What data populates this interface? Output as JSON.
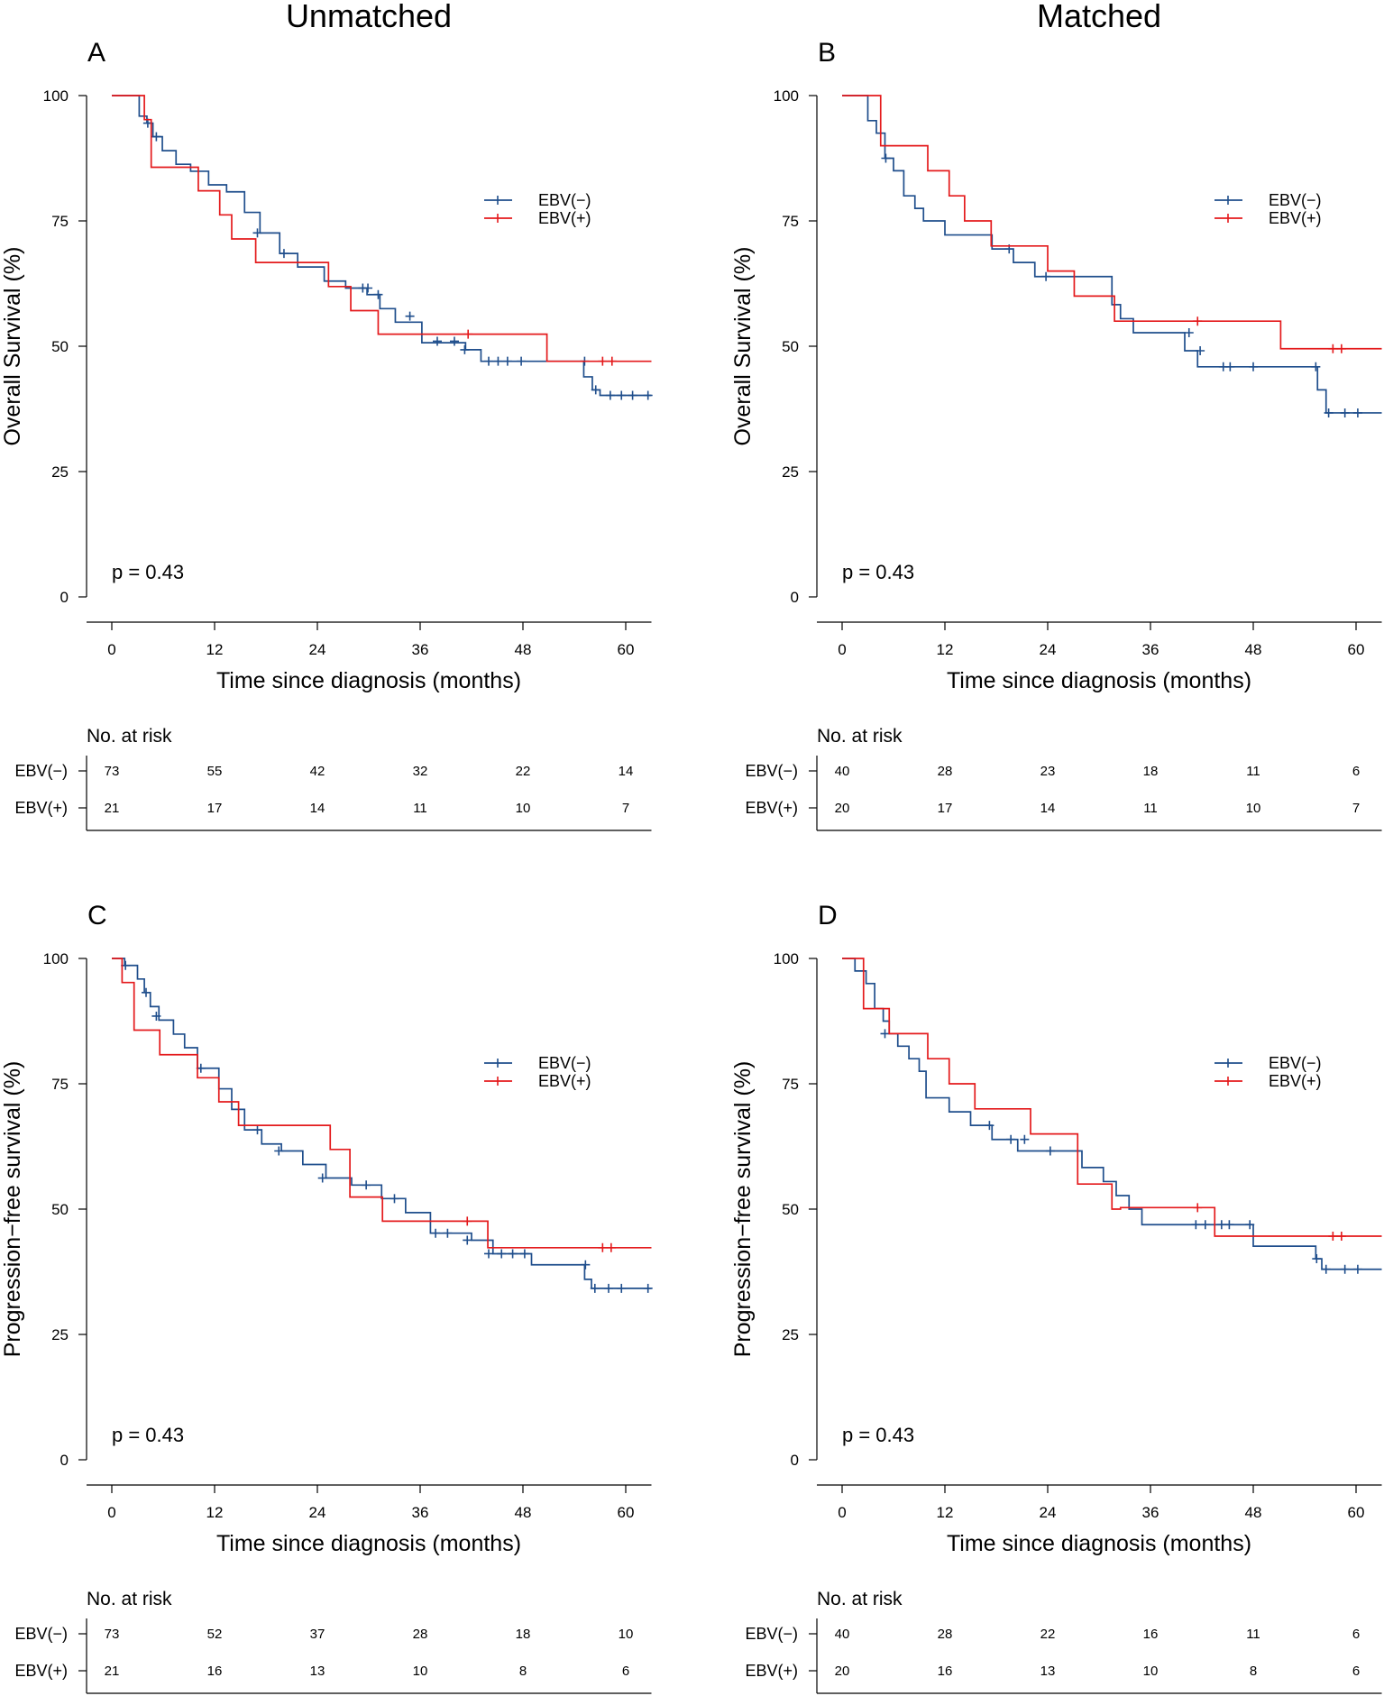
{
  "column_titles": [
    "Unmatched",
    "Matched"
  ],
  "colors": {
    "ebv_neg": "#1f4e8c",
    "ebv_pos": "#e41a1c",
    "axis": "#000000"
  },
  "chart_data": [
    {
      "panel": "A",
      "type": "line",
      "step": true,
      "title": "Unmatched",
      "xlabel": "Time since diagnosis (months)",
      "ylabel": "Overall Survival (%)",
      "xlim": [
        0,
        63
      ],
      "ylim": [
        0,
        100
      ],
      "xticks": [
        0,
        12,
        24,
        36,
        48,
        60
      ],
      "yticks": [
        0,
        25,
        50,
        75,
        100
      ],
      "pvalue": "p = 0.43",
      "legend": [
        "EBV(−)",
        "EBV(+)"
      ],
      "series": [
        {
          "name": "EBV(−)",
          "x": [
            0,
            3.2,
            4.1,
            4.8,
            5.9,
            7.5,
            9.2,
            11.3,
            13.4,
            15.5,
            17.3,
            19.6,
            21.7,
            24.8,
            27.3,
            29.8,
            31.3,
            33.1,
            36.2,
            41.3,
            43.1,
            55.1,
            56.1,
            57.0
          ],
          "y": [
            100,
            95.9,
            94.5,
            91.8,
            89.0,
            86.3,
            84.9,
            82.2,
            80.8,
            76.7,
            72.6,
            68.5,
            65.8,
            63.0,
            61.6,
            60.3,
            57.5,
            54.8,
            50.7,
            49.3,
            47.0,
            43.9,
            41.3,
            40.2
          ],
          "censor_x": [
            4.2,
            5.2,
            17.0,
            20.1,
            29.3,
            29.9,
            31.1,
            34.8,
            38.0,
            40.0,
            41.2,
            44.0,
            45.1,
            46.2,
            47.8,
            55.2,
            56.5,
            58.2,
            59.5,
            60.8,
            62.6
          ],
          "censor_y": [
            94.5,
            91.8,
            72.6,
            68.5,
            61.6,
            61.6,
            60.3,
            56.0,
            51.0,
            51.0,
            49.3,
            47.0,
            47.0,
            47.0,
            47.0,
            47.0,
            41.3,
            40.2,
            40.2,
            40.2,
            40.2
          ]
        },
        {
          "name": "EBV(+)",
          "x": [
            0,
            3.8,
            4.6,
            10.1,
            12.6,
            14.0,
            16.8,
            25.3,
            27.9,
            31.1,
            50.8
          ],
          "y": [
            100,
            95.2,
            85.7,
            81.0,
            76.2,
            71.4,
            66.7,
            61.9,
            57.1,
            52.4,
            47.0
          ],
          "censor_x": [
            41.6,
            57.3,
            58.4
          ],
          "censor_y": [
            52.4,
            47.0,
            47.0
          ]
        }
      ],
      "risk_table": {
        "title": "No. at risk",
        "times": [
          0,
          12,
          24,
          36,
          48,
          60
        ],
        "rows": [
          {
            "label": "EBV(−)",
            "values": [
              "73",
              "55",
              "42",
              "32",
              "22",
              "14"
            ]
          },
          {
            "label": "EBV(+)",
            "values": [
              "21",
              "17",
              "14",
              "11",
              "10",
              "7"
            ]
          }
        ]
      }
    },
    {
      "panel": "B",
      "type": "line",
      "step": true,
      "title": "Matched",
      "xlabel": "Time since diagnosis (months)",
      "ylabel": "Overall Survival (%)",
      "xlim": [
        0,
        63
      ],
      "ylim": [
        0,
        100
      ],
      "xticks": [
        0,
        12,
        24,
        36,
        48,
        60
      ],
      "yticks": [
        0,
        25,
        50,
        75,
        100
      ],
      "pvalue": "p = 0.43",
      "legend": [
        "EBV(−)",
        "EBV(+)"
      ],
      "series": [
        {
          "name": "EBV(−)",
          "x": [
            0,
            3.0,
            4.0,
            5.0,
            6.0,
            7.2,
            8.5,
            9.5,
            12.0,
            17.5,
            20.0,
            22.5,
            31.5,
            32.5,
            34.0,
            40.0,
            41.5,
            55.5,
            56.5
          ],
          "y": [
            100,
            95.0,
            92.5,
            87.5,
            85.0,
            80.0,
            77.5,
            75.0,
            72.2,
            69.4,
            66.7,
            63.9,
            58.3,
            55.5,
            52.7,
            49.1,
            45.9,
            41.3,
            36.7
          ],
          "censor_x": [
            5.1,
            19.5,
            23.8,
            40.5,
            41.8,
            44.5,
            45.3,
            48.0,
            55.3,
            56.8,
            58.7,
            60.2
          ],
          "censor_y": [
            87.5,
            69.4,
            63.9,
            52.7,
            49.1,
            45.9,
            45.9,
            45.9,
            45.9,
            36.7,
            36.7,
            36.7
          ]
        },
        {
          "name": "EBV(+)",
          "x": [
            0,
            4.5,
            10.0,
            12.5,
            14.3,
            17.4,
            24.0,
            27.1,
            31.8,
            32.5,
            51.2
          ],
          "y": [
            100,
            90.0,
            85.0,
            80.0,
            75.0,
            70.0,
            65.0,
            60.0,
            55.0,
            55.0,
            49.5
          ],
          "censor_x": [
            41.5,
            57.3,
            58.3
          ],
          "censor_y": [
            55.0,
            49.5,
            49.5
          ]
        }
      ],
      "risk_table": {
        "title": "No. at risk",
        "times": [
          0,
          12,
          24,
          36,
          48,
          60
        ],
        "rows": [
          {
            "label": "EBV(−)",
            "values": [
              "40",
              "28",
              "23",
              "18",
              "11",
              "6"
            ]
          },
          {
            "label": "EBV(+)",
            "values": [
              "20",
              "17",
              "14",
              "11",
              "10",
              "7"
            ]
          }
        ]
      }
    },
    {
      "panel": "C",
      "type": "line",
      "step": true,
      "title": "",
      "xlabel": "Time since diagnosis (months)",
      "ylabel": "Progression−free survival (%)",
      "xlim": [
        0,
        63
      ],
      "ylim": [
        0,
        100
      ],
      "xticks": [
        0,
        12,
        24,
        36,
        48,
        60
      ],
      "yticks": [
        0,
        25,
        50,
        75,
        100
      ],
      "pvalue": "p = 0.43",
      "legend": [
        "EBV(−)",
        "EBV(+)"
      ],
      "series": [
        {
          "name": "EBV(−)",
          "x": [
            0,
            1.5,
            3.0,
            3.8,
            4.5,
            5.5,
            7.2,
            8.5,
            10.0,
            12.5,
            14.0,
            15.5,
            17.5,
            19.8,
            22.3,
            25.0,
            28.0,
            31.5,
            34.3,
            37.2,
            42.0,
            44.5,
            49.0,
            55.2,
            56.0
          ],
          "y": [
            100,
            98.6,
            95.9,
            93.2,
            90.4,
            87.7,
            84.9,
            82.2,
            78.1,
            74.0,
            69.9,
            65.8,
            63.0,
            61.6,
            58.9,
            56.2,
            54.8,
            52.1,
            49.3,
            45.2,
            43.8,
            41.1,
            38.9,
            36.0,
            34.2
          ],
          "censor_x": [
            1.6,
            4.0,
            5.2,
            10.4,
            17.0,
            19.5,
            24.6,
            29.7,
            33.0,
            37.8,
            39.2,
            41.5,
            44.0,
            45.5,
            46.8,
            48.2,
            55.3,
            56.4,
            58.0,
            59.5,
            62.6
          ],
          "censor_y": [
            98.6,
            93.2,
            88.5,
            78.1,
            65.8,
            61.6,
            56.2,
            54.8,
            52.1,
            45.2,
            45.2,
            43.8,
            41.1,
            41.1,
            41.1,
            41.1,
            38.9,
            34.2,
            34.2,
            34.2,
            34.2
          ]
        },
        {
          "name": "EBV(+)",
          "x": [
            0,
            1.2,
            2.6,
            5.6,
            10.0,
            12.5,
            14.8,
            25.5,
            27.8,
            31.6,
            43.9
          ],
          "y": [
            100,
            95.2,
            85.7,
            80.8,
            76.2,
            71.4,
            66.7,
            61.9,
            52.4,
            47.6,
            42.3
          ],
          "censor_x": [
            41.5,
            57.3,
            58.3
          ],
          "censor_y": [
            47.6,
            42.3,
            42.3
          ]
        }
      ],
      "risk_table": {
        "title": "No. at risk",
        "times": [
          0,
          12,
          24,
          36,
          48,
          60
        ],
        "rows": [
          {
            "label": "EBV(−)",
            "values": [
              "73",
              "52",
              "37",
              "28",
              "18",
              "10"
            ]
          },
          {
            "label": "EBV(+)",
            "values": [
              "21",
              "16",
              "13",
              "10",
              "8",
              "6"
            ]
          }
        ]
      }
    },
    {
      "panel": "D",
      "type": "line",
      "step": true,
      "title": "",
      "xlabel": "Time since diagnosis (months)",
      "ylabel": "Progression−free survival (%)",
      "xlim": [
        0,
        63
      ],
      "ylim": [
        0,
        100
      ],
      "xticks": [
        0,
        12,
        24,
        36,
        48,
        60
      ],
      "yticks": [
        0,
        25,
        50,
        75,
        100
      ],
      "pvalue": "p = 0.43",
      "legend": [
        "EBV(−)",
        "EBV(+)"
      ],
      "series": [
        {
          "name": "EBV(−)",
          "x": [
            0,
            1.5,
            2.8,
            3.8,
            4.8,
            5.5,
            6.5,
            7.8,
            9.0,
            9.8,
            12.5,
            15.0,
            17.5,
            20.5,
            28.0,
            30.5,
            32.0,
            33.5,
            35.0,
            41.0,
            48.0,
            55.3,
            56.0
          ],
          "y": [
            100,
            97.5,
            95.0,
            90.0,
            87.5,
            85.0,
            82.5,
            80.0,
            77.5,
            72.2,
            69.4,
            66.7,
            63.9,
            61.6,
            58.3,
            55.5,
            52.7,
            50.0,
            46.9,
            46.9,
            42.6,
            40.1,
            38.0
          ],
          "censor_x": [
            5.0,
            17.2,
            19.7,
            21.3,
            24.3,
            41.3,
            42.4,
            44.3,
            45.2,
            47.6,
            55.4,
            56.5,
            58.7,
            60.2
          ],
          "censor_y": [
            85.0,
            66.7,
            63.9,
            63.9,
            61.6,
            46.9,
            46.9,
            46.9,
            46.9,
            46.9,
            40.1,
            38.0,
            38.0,
            38.0
          ]
        },
        {
          "name": "EBV(+)",
          "x": [
            0,
            2.5,
            5.5,
            10.0,
            12.5,
            15.5,
            22.0,
            27.5,
            31.5,
            32.5,
            43.5
          ],
          "y": [
            100,
            90.0,
            85.0,
            80.0,
            75.0,
            70.0,
            65.0,
            55.0,
            50.0,
            50.3,
            44.6
          ],
          "censor_x": [
            41.5,
            57.3,
            58.3
          ],
          "censor_y": [
            50.3,
            44.6,
            44.6
          ]
        }
      ],
      "risk_table": {
        "title": "No. at risk",
        "times": [
          0,
          12,
          24,
          36,
          48,
          60
        ],
        "rows": [
          {
            "label": "EBV(−)",
            "values": [
              "40",
              "28",
              "22",
              "16",
              "11",
              "6"
            ]
          },
          {
            "label": "EBV(+)",
            "values": [
              "20",
              "16",
              "13",
              "10",
              "8",
              "6"
            ]
          }
        ]
      }
    }
  ]
}
